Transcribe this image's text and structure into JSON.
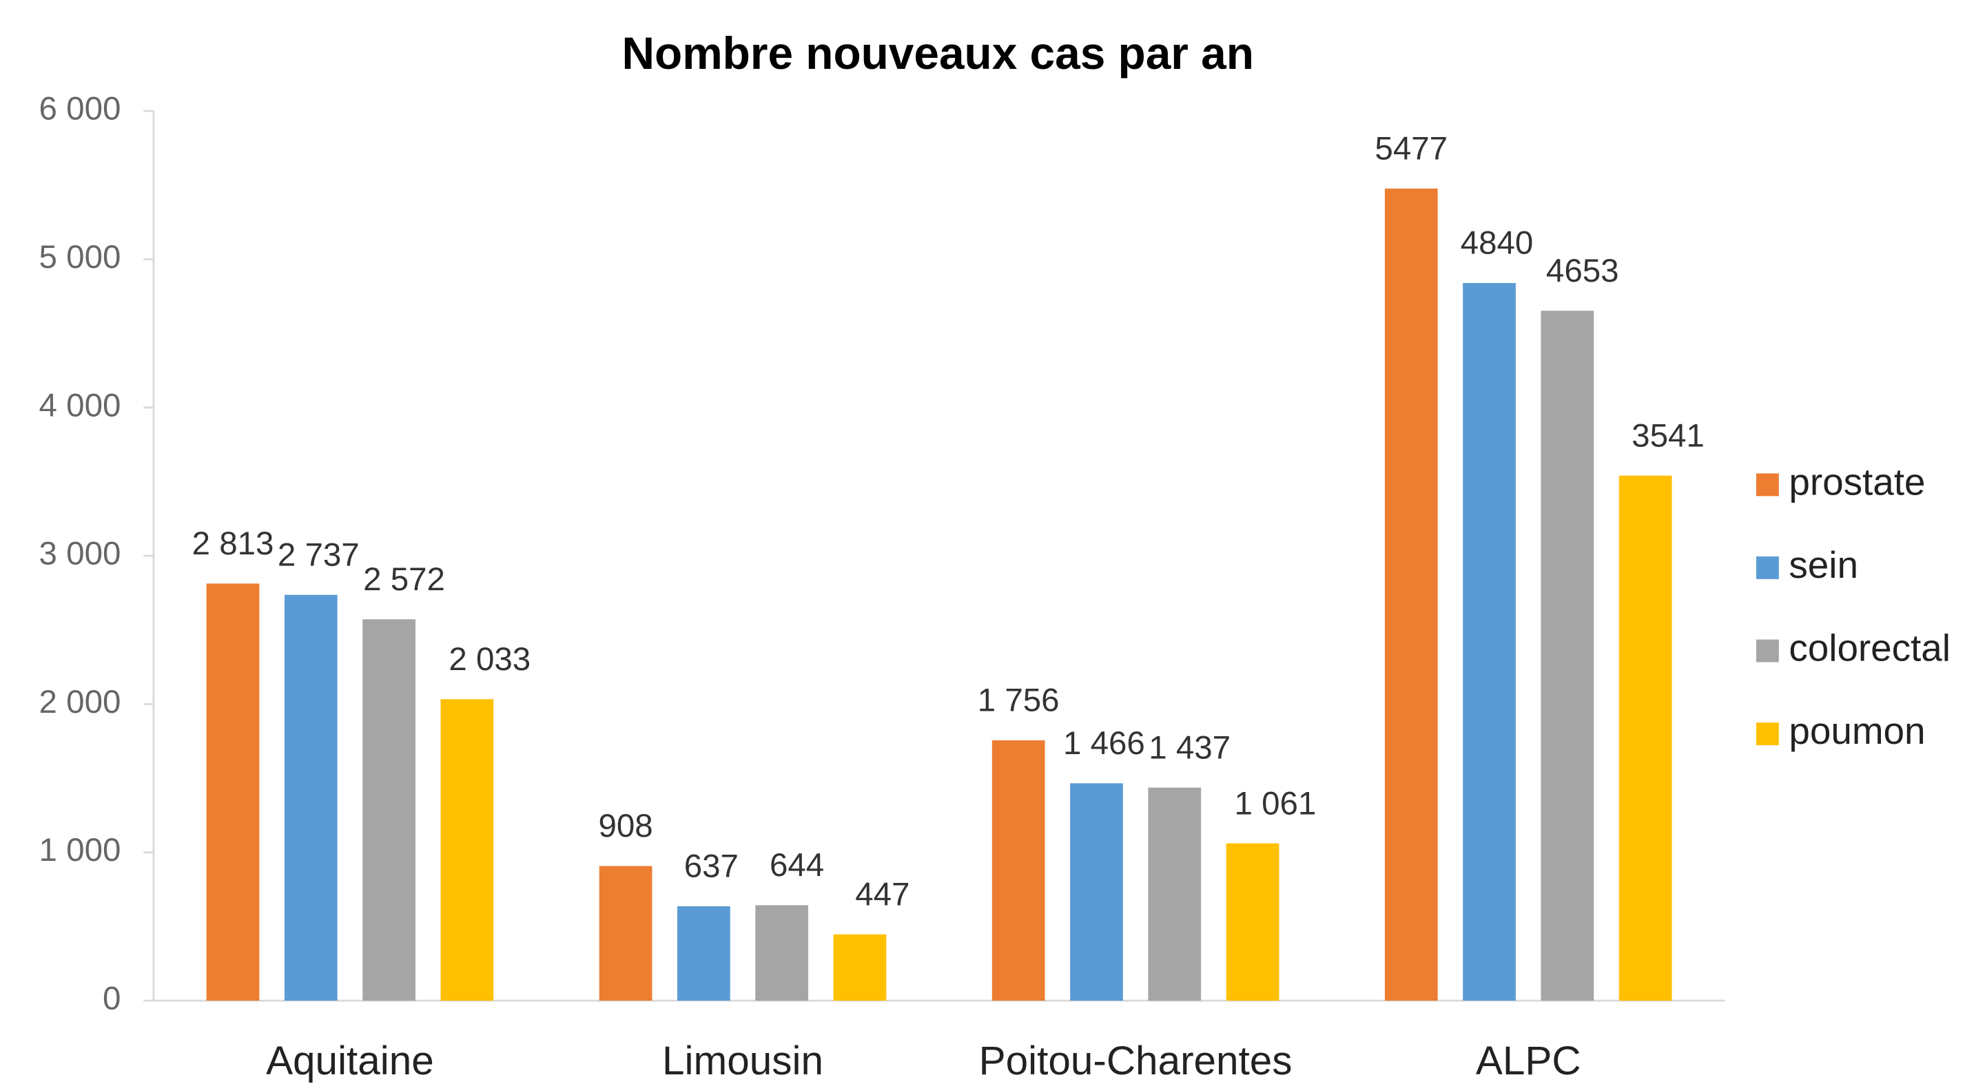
{
  "chart_data": {
    "type": "bar",
    "title": "Nombre nouveaux cas par an",
    "categories": [
      "Aquitaine",
      "Limousin",
      "Poitou-Charentes",
      "ALPC"
    ],
    "series": [
      {
        "name": "prostate",
        "color": "#ed7d31",
        "values": [
          2813,
          908,
          1756,
          5477
        ],
        "value_labels": [
          "2 813",
          "908",
          "1 756",
          "5477"
        ]
      },
      {
        "name": "sein",
        "color": "#5b9bd5",
        "values": [
          2737,
          637,
          1466,
          4840
        ],
        "value_labels": [
          "2 737",
          "637",
          "1 466",
          "4840"
        ]
      },
      {
        "name": "colorectal",
        "color": "#a5a5a5",
        "values": [
          2572,
          644,
          1437,
          4653
        ],
        "value_labels": [
          "2 572",
          "644",
          "1 437",
          "4653"
        ]
      },
      {
        "name": "poumon",
        "color": "#ffc000",
        "values": [
          2033,
          447,
          1061,
          3541
        ],
        "value_labels": [
          "2 033",
          "447",
          "1 061",
          "3541"
        ]
      }
    ],
    "ylim": [
      0,
      6000
    ],
    "yticks": [
      0,
      {
        "value": 1000,
        "label": "1 000"
      },
      {
        "value": 2000,
        "label": "2 000"
      },
      {
        "value": 3000,
        "label": "3 000"
      },
      {
        "value": 4000,
        "label": "4 000"
      },
      {
        "value": 5000,
        "label": "5 000"
      },
      {
        "value": 6000,
        "label": "6 000"
      }
    ],
    "legend": "right",
    "grid": false
  }
}
